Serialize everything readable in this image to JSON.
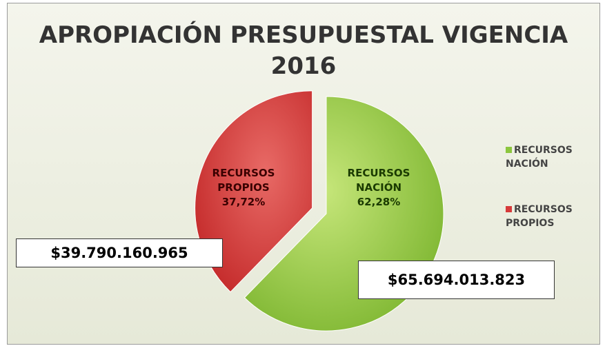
{
  "chart_data": {
    "type": "pie",
    "title": "APROPIACIÓN PRESUPUESTAL VIGENCIA 2016",
    "categories": [
      "RECURSOS NACIÓN",
      "RECURSOS PROPIOS"
    ],
    "values": [
      62.28,
      37.72
    ],
    "value_labels": [
      "62,28%",
      "37,72%"
    ],
    "colors": [
      "#8cc63e",
      "#d63a3a"
    ],
    "annotations": [
      "$65.694.013.823",
      "$39.790.160.965"
    ],
    "legend": "right"
  }
}
